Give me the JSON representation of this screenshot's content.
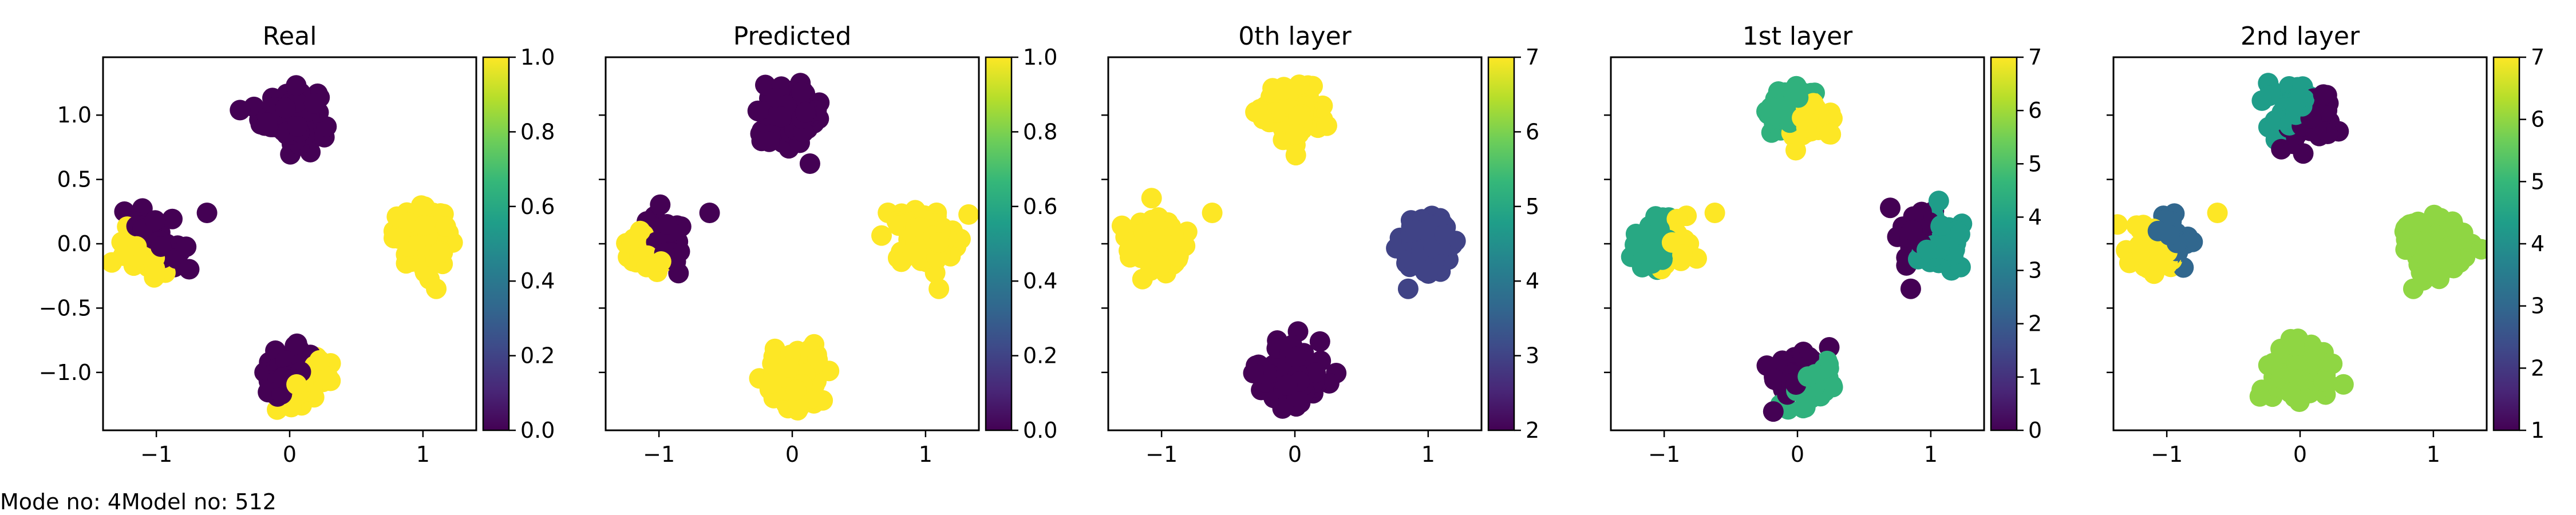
{
  "footer": {
    "mode_text": "Mode no: 4",
    "model_text": "Model no: 512"
  },
  "colormap": [
    "#440154",
    "#482878",
    "#3e4a89",
    "#31688e",
    "#26828e",
    "#1f9e89",
    "#35b779",
    "#6ece58",
    "#b5de2b",
    "#fde725"
  ],
  "chart_data": [
    {
      "type": "scatter",
      "title": "Real",
      "xlim": [
        -1.4,
        1.4
      ],
      "ylim": [
        -1.45,
        1.45
      ],
      "xticks": [
        -1,
        0,
        1
      ],
      "xtick_labels": [
        "−1",
        "0",
        "1"
      ],
      "yticks": [
        1.0,
        0.5,
        0.0,
        -0.5,
        -1.0
      ],
      "ytick_labels": [
        "1.0",
        "0.5",
        "0.0",
        "−0.5",
        "−1.0"
      ],
      "colorbar": {
        "min": 0.0,
        "max": 1.0,
        "ticks": [
          0.0,
          0.2,
          0.4,
          0.6,
          0.8,
          1.0
        ],
        "labels": [
          "0.0",
          "0.2",
          "0.4",
          "0.6",
          "0.8",
          "1.0"
        ]
      },
      "clusters": [
        {
          "cx": 0.0,
          "cy": 1.0,
          "r": 0.28,
          "n": 120,
          "split": null,
          "colors": [
            0.0
          ]
        },
        {
          "cx": 1.0,
          "cy": 0.05,
          "r": 0.28,
          "n": 120,
          "split": null,
          "colors": [
            1.0
          ]
        },
        {
          "cx": -1.05,
          "cy": -0.02,
          "r": 0.26,
          "n": 110,
          "split": [
            0.75,
            0.6,
            0.0
          ],
          "colors": [
            1.0,
            0.0
          ]
        },
        {
          "cx": 0.02,
          "cy": -1.05,
          "r": 0.28,
          "n": 120,
          "split": [
            -0.75,
            0.6,
            -0.08
          ],
          "colors": [
            1.0,
            0.0
          ]
        }
      ],
      "outliers": [
        {
          "x": -0.62,
          "y": 0.24,
          "c": 0.0
        },
        {
          "x": 1.1,
          "y": -0.35,
          "c": 1.0
        }
      ]
    },
    {
      "type": "scatter",
      "title": "Predicted",
      "xlim": [
        -1.4,
        1.4
      ],
      "ylim": [
        -1.45,
        1.45
      ],
      "xticks": [
        -1,
        0,
        1
      ],
      "xtick_labels": [
        "−1",
        "0",
        "1"
      ],
      "yticks": [
        1.0,
        0.5,
        0.0,
        -0.5,
        -1.0
      ],
      "ytick_labels": [
        "",
        "",
        "",
        "",
        ""
      ],
      "colorbar": {
        "min": 0.0,
        "max": 1.0,
        "ticks": [
          0.0,
          0.2,
          0.4,
          0.6,
          0.8,
          1.0
        ],
        "labels": [
          "0.0",
          "0.2",
          "0.4",
          "0.6",
          "0.8",
          "1.0"
        ]
      },
      "clusters": [
        {
          "cx": 0.0,
          "cy": 1.0,
          "r": 0.28,
          "n": 120,
          "split": null,
          "colors": [
            0.0
          ]
        },
        {
          "cx": 1.0,
          "cy": 0.05,
          "r": 0.28,
          "n": 120,
          "split": null,
          "colors": [
            1.0
          ]
        },
        {
          "cx": -1.05,
          "cy": -0.02,
          "r": 0.26,
          "n": 110,
          "split": [
            0.75,
            0.6,
            0.02
          ],
          "colors": [
            1.0,
            0.0
          ]
        },
        {
          "cx": 0.02,
          "cy": -1.05,
          "r": 0.28,
          "n": 120,
          "split": null,
          "colors": [
            1.0
          ]
        }
      ],
      "outliers": [
        {
          "x": -0.62,
          "y": 0.24,
          "c": 0.0
        },
        {
          "x": 1.1,
          "y": -0.35,
          "c": 1.0
        }
      ]
    },
    {
      "type": "scatter",
      "title": "0th layer",
      "xlim": [
        -1.4,
        1.4
      ],
      "ylim": [
        -1.45,
        1.45
      ],
      "xticks": [
        -1,
        0,
        1
      ],
      "xtick_labels": [
        "−1",
        "0",
        "1"
      ],
      "yticks": [
        1.0,
        0.5,
        0.0,
        -0.5,
        -1.0
      ],
      "ytick_labels": [
        "",
        "",
        "",
        "",
        ""
      ],
      "colorbar": {
        "min": 2,
        "max": 7,
        "ticks": [
          2,
          3,
          4,
          5,
          6,
          7
        ],
        "labels": [
          "2",
          "3",
          "4",
          "5",
          "6",
          "7"
        ]
      },
      "clusters": [
        {
          "cx": -0.02,
          "cy": 1.02,
          "r": 0.27,
          "n": 120,
          "split": null,
          "colors": [
            1.0
          ]
        },
        {
          "cx": 1.0,
          "cy": 0.0,
          "r": 0.28,
          "n": 120,
          "split": null,
          "colors": [
            0.2
          ]
        },
        {
          "cx": -1.02,
          "cy": 0.0,
          "r": 0.27,
          "n": 110,
          "split": null,
          "colors": [
            1.0
          ]
        },
        {
          "cx": 0.0,
          "cy": -1.02,
          "r": 0.28,
          "n": 120,
          "split": null,
          "colors": [
            0.0
          ]
        }
      ],
      "outliers": [
        {
          "x": -0.62,
          "y": 0.24,
          "c": 1.0
        },
        {
          "x": 0.85,
          "y": -0.35,
          "c": 0.2
        }
      ]
    },
    {
      "type": "scatter",
      "title": "1st layer",
      "xlim": [
        -1.4,
        1.4
      ],
      "ylim": [
        -1.45,
        1.45
      ],
      "xticks": [
        -1,
        0,
        1
      ],
      "xtick_labels": [
        "−1",
        "0",
        "1"
      ],
      "yticks": [
        1.0,
        0.5,
        0.0,
        -0.5,
        -1.0
      ],
      "ytick_labels": [
        "",
        "",
        "",
        "",
        ""
      ],
      "colorbar": {
        "min": 0,
        "max": 7,
        "ticks": [
          0,
          1,
          2,
          3,
          4,
          5,
          6,
          7
        ],
        "labels": [
          "0",
          "1",
          "2",
          "3",
          "4",
          "5",
          "6",
          "7"
        ]
      },
      "clusters": [
        {
          "cx": 0.0,
          "cy": 1.0,
          "r": 0.28,
          "n": 120,
          "split": [
            0.8,
            -0.6,
            0.02
          ],
          "colors": [
            0.64,
            1.0
          ]
        },
        {
          "cx": 1.0,
          "cy": 0.05,
          "r": 0.28,
          "n": 120,
          "split": [
            -1.0,
            0.4,
            0.18
          ],
          "colors": [
            0.55,
            0.0
          ]
        },
        {
          "cx": -1.02,
          "cy": 0.0,
          "r": 0.27,
          "n": 110,
          "split": [
            0.9,
            -0.3,
            0.15
          ],
          "colors": [
            0.6,
            1.0
          ]
        },
        {
          "cx": 0.02,
          "cy": -1.05,
          "r": 0.28,
          "n": 120,
          "split": [
            -0.75,
            0.65,
            -0.05
          ],
          "colors": [
            0.64,
            0.0
          ]
        }
      ],
      "outliers": [
        {
          "x": -0.62,
          "y": 0.24,
          "c": 1.0
        },
        {
          "x": 0.85,
          "y": -0.35,
          "c": 0.0
        }
      ]
    },
    {
      "type": "scatter",
      "title": "2nd layer",
      "xlim": [
        -1.4,
        1.4
      ],
      "ylim": [
        -1.45,
        1.45
      ],
      "xticks": [
        -1,
        0,
        1
      ],
      "xtick_labels": [
        "−1",
        "0",
        "1"
      ],
      "yticks": [
        1.0,
        0.5,
        0.0,
        -0.5,
        -1.0
      ],
      "ytick_labels": [
        "",
        "",
        "",
        "",
        ""
      ],
      "colorbar": {
        "min": 1,
        "max": 7,
        "ticks": [
          1,
          2,
          3,
          4,
          5,
          6,
          7
        ],
        "labels": [
          "1",
          "2",
          "3",
          "4",
          "5",
          "6",
          "7"
        ]
      },
      "clusters": [
        {
          "cx": 0.0,
          "cy": 1.0,
          "r": 0.28,
          "n": 120,
          "split": [
            0.8,
            -0.6,
            -0.05
          ],
          "colors": [
            0.55,
            0.0
          ]
        },
        {
          "cx": 1.0,
          "cy": 0.0,
          "r": 0.28,
          "n": 120,
          "split": null,
          "colors": [
            0.83
          ]
        },
        {
          "cx": -1.05,
          "cy": 0.0,
          "r": 0.27,
          "n": 110,
          "split": [
            0.85,
            0.5,
            0.08
          ],
          "colors": [
            1.0,
            0.33
          ]
        },
        {
          "cx": 0.0,
          "cy": -1.0,
          "r": 0.28,
          "n": 120,
          "split": null,
          "colors": [
            0.83
          ]
        }
      ],
      "outliers": [
        {
          "x": -0.62,
          "y": 0.24,
          "c": 1.0
        },
        {
          "x": 0.85,
          "y": -0.35,
          "c": 0.83
        }
      ]
    }
  ]
}
